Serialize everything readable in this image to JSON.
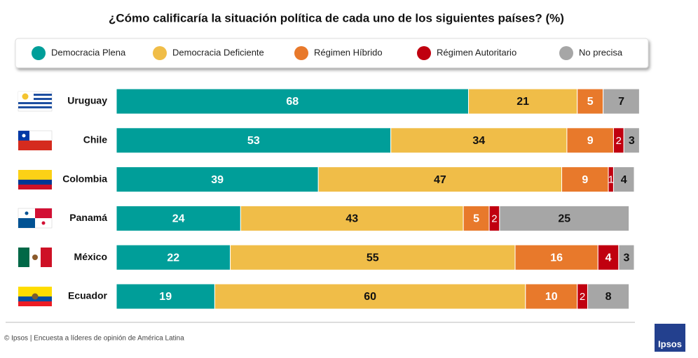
{
  "chart_data": {
    "type": "stacked-bar-horizontal",
    "title": "¿Cómo calificaría la situación política de cada uno de los siguientes países? (%)",
    "categories": [
      "Uruguay",
      "Chile",
      "Colombia",
      "Panamá",
      "México",
      "Ecuador"
    ],
    "series": [
      {
        "name": "Democracia Plena",
        "color": "#009e99",
        "values": [
          68,
          53,
          39,
          24,
          22,
          19
        ]
      },
      {
        "name": "Democracia Deficiente",
        "color": "#f0bd48",
        "values": [
          21,
          34,
          47,
          43,
          55,
          60
        ]
      },
      {
        "name": "Régimen Híbrido",
        "color": "#e8792b",
        "values": [
          5,
          9,
          9,
          5,
          16,
          10
        ]
      },
      {
        "name": "Régimen Autoritario",
        "color": "#c0000f",
        "values": [
          null,
          2,
          1,
          2,
          4,
          2
        ]
      },
      {
        "name": "No precisa",
        "color": "#a6a6a6",
        "values": [
          7,
          3,
          4,
          25,
          3,
          8
        ]
      }
    ],
    "legend": "top",
    "footer": "© Ipsos | Encuesta a líderes de opinión de América Latina",
    "logo": "Ipsos"
  }
}
